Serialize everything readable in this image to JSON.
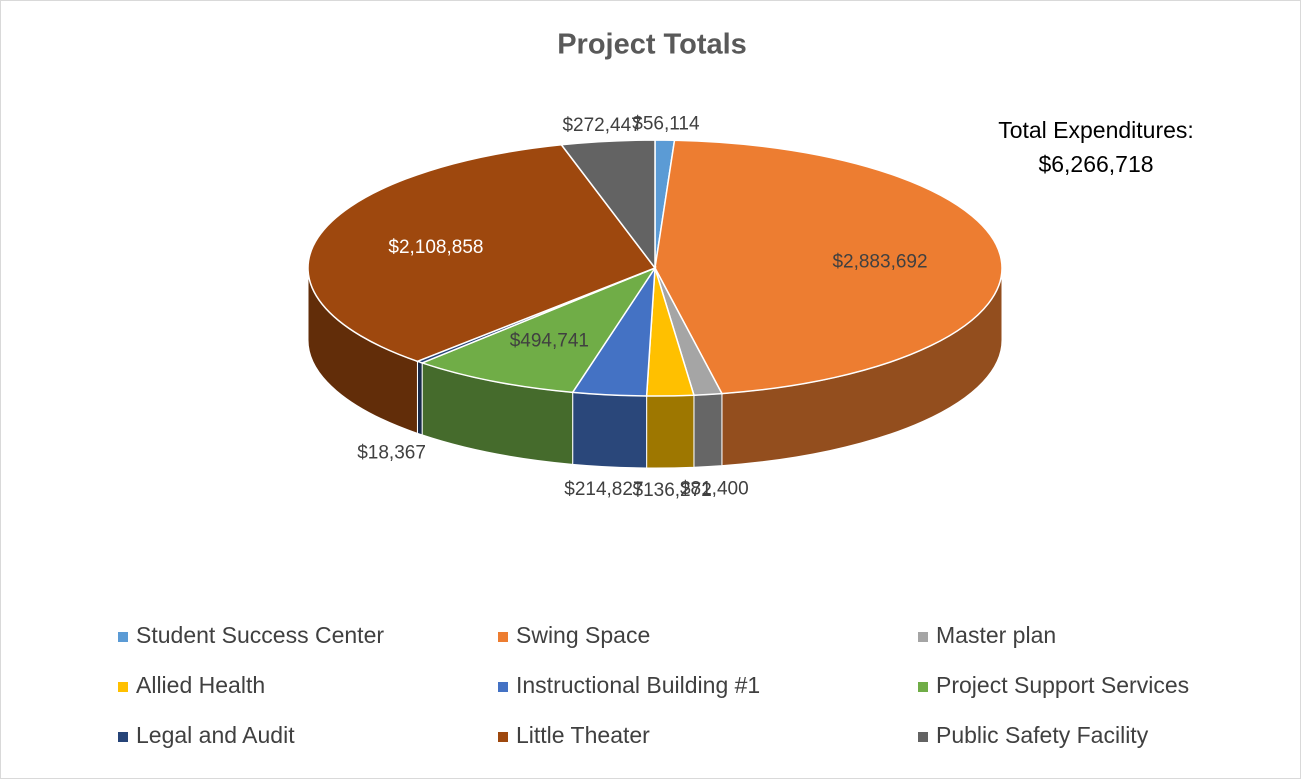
{
  "chart_data": {
    "type": "pie3d",
    "title": "Project Totals",
    "annotation": [
      "Total Expenditures:",
      "$6,266,718"
    ],
    "categories": [
      "Student Success Center",
      "Swing Space",
      "Master plan",
      "Allied Health",
      "Instructional Building #1",
      "Project Support Services",
      "Legal and Audit",
      "Little Theater",
      "Public Safety Facility"
    ],
    "values": [
      56114,
      2883692,
      81400,
      136272,
      214827,
      494741,
      18367,
      2108858,
      272447
    ],
    "value_labels": [
      "$56,114",
      "$2,883,692",
      "$81,400",
      "$136,272",
      "$214,827",
      "$494,741",
      "$18,367",
      "$2,108,858",
      "$272,447"
    ],
    "colors": [
      "#5b9bd5",
      "#ed7d31",
      "#a5a5a5",
      "#ffc000",
      "#4472c4",
      "#70ad47",
      "#264478",
      "#9e480e",
      "#636363"
    ],
    "legend": "bottom"
  }
}
